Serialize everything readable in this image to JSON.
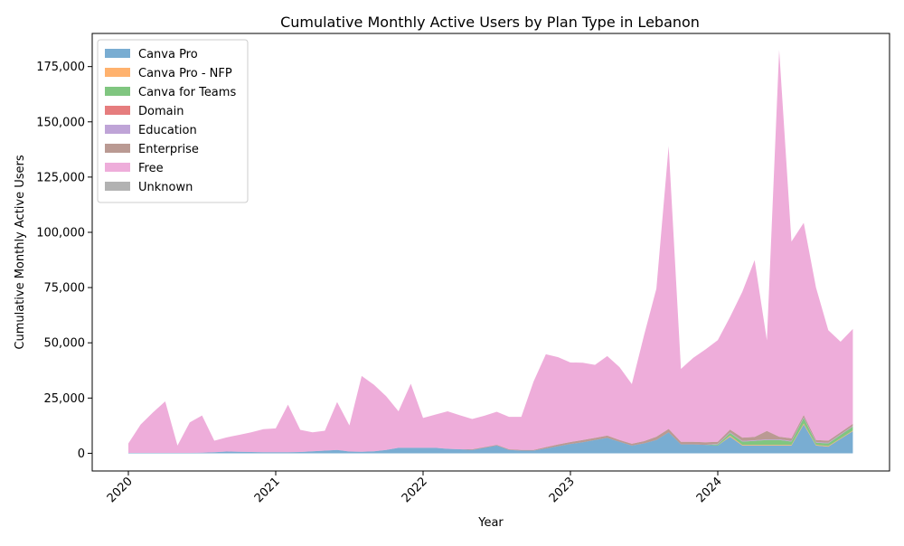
{
  "chart_data": {
    "type": "area",
    "stacked": true,
    "title": "Cumulative Monthly Active Users by Plan Type in Lebanon",
    "xlabel": "Year",
    "ylabel": "Cumulative Monthly Active Users",
    "x_tick_labels": [
      "2020",
      "2021",
      "2022",
      "2023",
      "2024"
    ],
    "y_tick_labels": [
      "0",
      "25,000",
      "50,000",
      "75,000",
      "100,000",
      "125,000",
      "150,000",
      "175,000"
    ],
    "ylim": [
      -8000,
      190000
    ],
    "legend_position": "upper-left",
    "grid": false,
    "x": [
      "2020-01",
      "2020-02",
      "2020-03",
      "2020-04",
      "2020-05",
      "2020-06",
      "2020-07",
      "2020-08",
      "2020-09",
      "2020-10",
      "2020-11",
      "2020-12",
      "2021-01",
      "2021-02",
      "2021-03",
      "2021-04",
      "2021-05",
      "2021-06",
      "2021-07",
      "2021-08",
      "2021-09",
      "2021-10",
      "2021-11",
      "2021-12",
      "2022-01",
      "2022-02",
      "2022-03",
      "2022-04",
      "2022-05",
      "2022-06",
      "2022-07",
      "2022-08",
      "2022-09",
      "2022-10",
      "2022-11",
      "2022-12",
      "2023-01",
      "2023-02",
      "2023-03",
      "2023-04",
      "2023-05",
      "2023-06",
      "2023-07",
      "2023-08",
      "2023-09",
      "2023-10",
      "2023-11",
      "2023-12",
      "2024-01",
      "2024-02",
      "2024-03",
      "2024-04",
      "2024-05",
      "2024-06",
      "2024-07",
      "2024-08",
      "2024-09",
      "2024-10",
      "2024-11",
      "2024-12"
    ],
    "series": [
      {
        "name": "Canva Pro",
        "color": "#1f77b4",
        "values": [
          200,
          200,
          200,
          200,
          200,
          200,
          300,
          500,
          800,
          700,
          600,
          500,
          500,
          500,
          600,
          900,
          1200,
          1500,
          800,
          700,
          900,
          1500,
          2500,
          2500,
          2500,
          2500,
          2000,
          1800,
          1500,
          2500,
          3500,
          1500,
          1200,
          1200,
          2200,
          3200,
          4200,
          5000,
          6000,
          7000,
          5200,
          3500,
          4500,
          6000,
          9500,
          4000,
          4000,
          3800,
          3500,
          7500,
          3500,
          3500,
          3500,
          3500,
          3500,
          13000,
          3500,
          3000,
          6500,
          10000
        ]
      },
      {
        "name": "Canva Pro - NFP",
        "color": "#ff7f0e",
        "values": [
          0,
          0,
          0,
          0,
          0,
          0,
          0,
          0,
          0,
          0,
          0,
          0,
          0,
          0,
          0,
          0,
          0,
          0,
          0,
          0,
          0,
          0,
          0,
          0,
          0,
          0,
          0,
          0,
          0,
          0,
          0,
          0,
          0,
          0,
          0,
          0,
          0,
          0,
          0,
          0,
          0,
          0,
          0,
          0,
          0,
          0,
          0,
          0,
          0,
          500,
          300,
          300,
          300,
          300,
          300,
          500,
          300,
          300,
          300,
          300
        ]
      },
      {
        "name": "Canva for Teams",
        "color": "#2ca02c",
        "values": [
          0,
          0,
          0,
          0,
          0,
          0,
          0,
          0,
          0,
          0,
          0,
          0,
          0,
          0,
          0,
          0,
          0,
          0,
          0,
          0,
          0,
          0,
          0,
          0,
          0,
          0,
          0,
          0,
          0,
          0,
          0,
          0,
          0,
          0,
          0,
          0,
          0,
          0,
          0,
          0,
          0,
          0,
          0,
          0,
          0,
          0,
          0,
          0,
          500,
          1200,
          1500,
          1800,
          2200,
          2200,
          1500,
          2500,
          1000,
          1200,
          1500,
          1800
        ]
      },
      {
        "name": "Domain",
        "color": "#d62728",
        "values": [
          0,
          0,
          0,
          0,
          0,
          0,
          0,
          0,
          0,
          0,
          0,
          0,
          0,
          0,
          0,
          0,
          0,
          0,
          0,
          0,
          0,
          0,
          0,
          0,
          0,
          0,
          0,
          0,
          0,
          0,
          0,
          0,
          0,
          0,
          0,
          0,
          0,
          0,
          0,
          0,
          0,
          0,
          0,
          0,
          0,
          0,
          0,
          0,
          0,
          0,
          0,
          0,
          0,
          0,
          0,
          0,
          0,
          0,
          0,
          0
        ]
      },
      {
        "name": "Education",
        "color": "#9467bd",
        "values": [
          0,
          0,
          0,
          0,
          0,
          0,
          0,
          0,
          0,
          0,
          0,
          0,
          0,
          0,
          0,
          0,
          0,
          0,
          0,
          0,
          0,
          0,
          0,
          0,
          0,
          0,
          0,
          0,
          0,
          0,
          0,
          0,
          0,
          0,
          0,
          0,
          0,
          0,
          0,
          0,
          0,
          0,
          0,
          0,
          0,
          0,
          0,
          0,
          300,
          300,
          300,
          300,
          300,
          300,
          300,
          300,
          300,
          300,
          300,
          300
        ]
      },
      {
        "name": "Enterprise",
        "color": "#8c564b",
        "values": [
          0,
          0,
          0,
          0,
          0,
          0,
          0,
          0,
          0,
          0,
          0,
          0,
          0,
          0,
          0,
          0,
          0,
          0,
          0,
          0,
          0,
          0,
          0,
          0,
          0,
          0,
          0,
          0,
          300,
          300,
          300,
          300,
          300,
          300,
          600,
          800,
          900,
          1000,
          1000,
          1000,
          800,
          800,
          1000,
          1500,
          1500,
          1200,
          1200,
          1200,
          900,
          1200,
          1500,
          1500,
          3800,
          1200,
          1200,
          1000,
          900,
          900,
          900,
          900
        ]
      },
      {
        "name": "Free",
        "color": "#e377c2",
        "values": [
          4300,
          12800,
          18300,
          23300,
          3300,
          13800,
          16800,
          5200,
          6400,
          7600,
          8900,
          10400,
          10800,
          21500,
          10000,
          8600,
          9000,
          21700,
          11800,
          34300,
          30100,
          24300,
          16500,
          29000,
          13500,
          15000,
          17000,
          15400,
          13700,
          14200,
          15000,
          14700,
          15000,
          31000,
          42000,
          39500,
          36000,
          35000,
          33000,
          36000,
          33000,
          27000,
          48000,
          67000,
          128000,
          33000,
          38000,
          42000,
          46000,
          51000,
          66000,
          80000,
          41000,
          175000,
          89000,
          87000,
          69000,
          50000,
          41000,
          43000
        ]
      },
      {
        "name": "Unknown",
        "color": "#7f7f7f",
        "values": [
          0,
          0,
          0,
          0,
          0,
          0,
          0,
          0,
          0,
          0,
          0,
          0,
          0,
          0,
          0,
          0,
          0,
          0,
          0,
          0,
          0,
          0,
          0,
          0,
          0,
          0,
          0,
          0,
          0,
          0,
          0,
          0,
          0,
          0,
          0,
          0,
          0,
          0,
          0,
          0,
          0,
          0,
          0,
          0,
          0,
          0,
          0,
          0,
          0,
          0,
          0,
          0,
          0,
          0,
          0,
          0,
          0,
          0,
          0,
          0
        ]
      }
    ]
  }
}
